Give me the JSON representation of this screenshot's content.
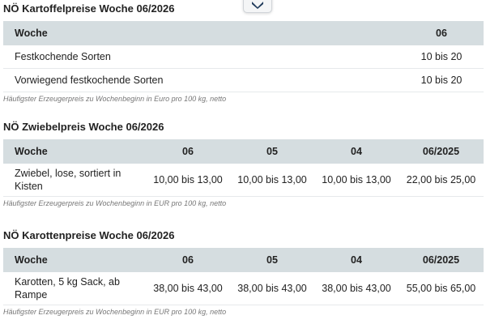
{
  "floating_button": {
    "icon": "chevron-down-icon",
    "color": "#1f3a5a"
  },
  "sections": [
    {
      "title": "NÖ Kartoffelpreise Woche 06/2026",
      "headers": [
        "Woche",
        "06"
      ],
      "rows": [
        [
          "Festkochende Sorten",
          "10 bis 20"
        ],
        [
          "Vorwiegend festkochende Sorten",
          "10 bis 20"
        ]
      ],
      "note": "Häufigster Erzeugerpreis zu Wochenbeginn in Euro pro 100 kg, netto"
    },
    {
      "title": "NÖ Zwiebelpreis Woche 06/2026",
      "headers": [
        "Woche",
        "06",
        "05",
        "04",
        "06/2025"
      ],
      "rows": [
        [
          "Zwiebel, lose, sortiert in Kisten",
          "10,00 bis 13,00",
          "10,00 bis 13,00",
          "10,00 bis 13,00",
          "22,00 bis 25,00"
        ]
      ],
      "note": "Häufigster Erzeugerpreis zu Wochenbeginn in EUR pro 100 kg, netto"
    },
    {
      "title": "NÖ Karottenpreise Woche 06/2026",
      "headers": [
        "Woche",
        "06",
        "05",
        "04",
        "06/2025"
      ],
      "rows": [
        [
          "Karotten, 5 kg Sack, ab Rampe",
          "38,00 bis 43,00",
          "38,00 bis 43,00",
          "38,00 bis 43,00",
          "55,00 bis 65,00"
        ]
      ],
      "note": "Häufigster Erzeugerpreis zu Wochenbeginn in EUR pro 100 kg, netto"
    }
  ]
}
